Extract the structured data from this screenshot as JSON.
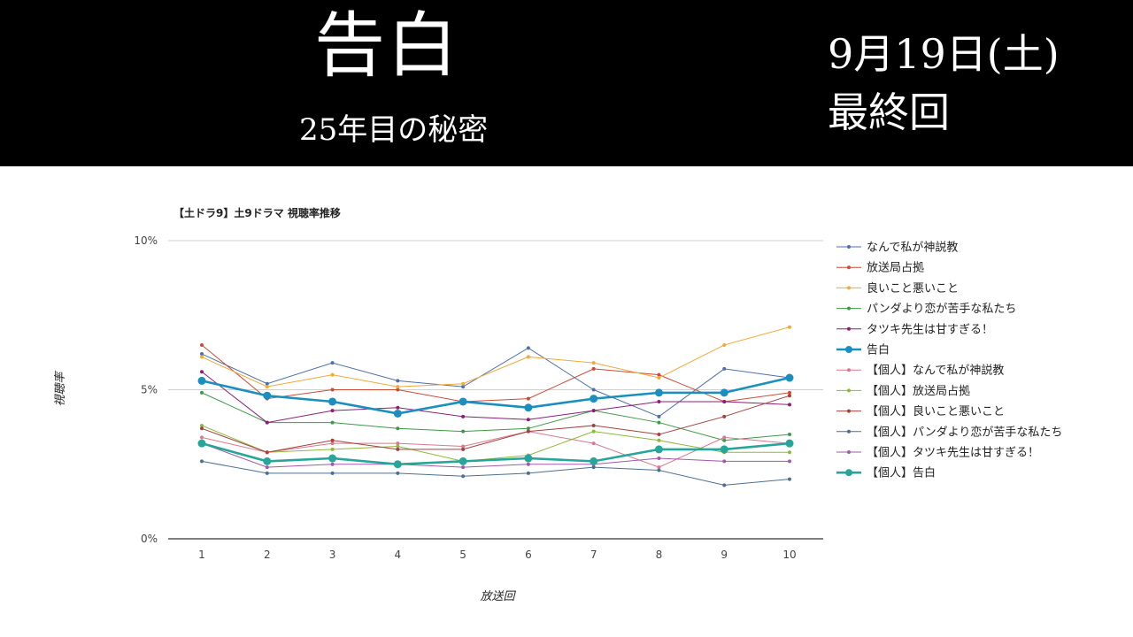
{
  "banner": {
    "title": "告白",
    "subtitle": "25年目の秘密",
    "date": "9月19日(土)",
    "note": "最終回"
  },
  "chart_data": {
    "type": "line",
    "title": "【土ドラ9】土9ドラマ 視聴率推移",
    "xlabel": "放送回",
    "ylabel": "視聴率",
    "x": [
      1,
      2,
      3,
      4,
      5,
      6,
      7,
      8,
      9,
      10
    ],
    "ylim": [
      0,
      10
    ],
    "yticks": [
      "0%",
      "5%",
      "10%"
    ],
    "grid": true,
    "legend_position": "right",
    "series": [
      {
        "name": "なんで私が神説教",
        "color": "#4e6fa8",
        "highlight": false,
        "values": [
          6.2,
          5.2,
          5.9,
          5.3,
          5.1,
          6.4,
          5.0,
          4.1,
          5.7,
          5.4
        ]
      },
      {
        "name": "放送局占拠",
        "color": "#cc4b37",
        "highlight": false,
        "values": [
          6.5,
          4.7,
          5.0,
          5.0,
          4.6,
          4.7,
          5.7,
          5.5,
          4.6,
          4.9
        ]
      },
      {
        "name": "良いこと悪いこと",
        "color": "#f0a93b",
        "highlight": false,
        "values": [
          6.1,
          5.1,
          5.5,
          5.1,
          5.2,
          6.1,
          5.9,
          5.4,
          6.5,
          7.1
        ]
      },
      {
        "name": "パンダより恋が苦手な私たち",
        "color": "#3c9a46",
        "highlight": false,
        "values": [
          4.9,
          3.9,
          3.9,
          3.7,
          3.6,
          3.7,
          4.3,
          3.9,
          3.3,
          3.5
        ]
      },
      {
        "name": "タツキ先生は甘すぎる！",
        "color": "#8b1f78",
        "highlight": false,
        "values": [
          5.6,
          3.9,
          4.3,
          4.4,
          4.1,
          4.0,
          4.3,
          4.6,
          4.6,
          4.5
        ]
      },
      {
        "name": "告白",
        "color": "#1a8fbf",
        "highlight": true,
        "values": [
          5.3,
          4.8,
          4.6,
          4.2,
          4.6,
          4.4,
          4.7,
          4.9,
          4.9,
          5.4
        ]
      },
      {
        "name": "【個人】なんで私が神説教",
        "color": "#d9788f",
        "highlight": false,
        "values": [
          3.4,
          2.9,
          3.2,
          3.2,
          3.1,
          3.6,
          3.2,
          2.4,
          3.4,
          3.2
        ]
      },
      {
        "name": "【個人】放送局占拠",
        "color": "#8db83c",
        "highlight": false,
        "values": [
          3.8,
          2.9,
          3.0,
          3.1,
          2.6,
          2.8,
          3.6,
          3.3,
          2.9,
          2.9
        ]
      },
      {
        "name": "【個人】良いこと悪いこと",
        "color": "#a6403d",
        "highlight": false,
        "values": [
          3.7,
          2.9,
          3.3,
          3.0,
          3.0,
          3.6,
          3.8,
          3.5,
          4.1,
          4.8
        ]
      },
      {
        "name": "【個人】パンダより恋が苦手な私たち",
        "color": "#4d6f8f",
        "highlight": false,
        "values": [
          2.6,
          2.2,
          2.2,
          2.2,
          2.1,
          2.2,
          2.4,
          2.3,
          1.8,
          2.0
        ]
      },
      {
        "name": "【個人】タツキ先生は甘すぎる！",
        "color": "#a05aa8",
        "highlight": false,
        "values": [
          3.2,
          2.4,
          2.5,
          2.5,
          2.4,
          2.5,
          2.5,
          2.7,
          2.6,
          2.6
        ]
      },
      {
        "name": "【個人】告白",
        "color": "#26a69a",
        "highlight": true,
        "values": [
          3.2,
          2.6,
          2.7,
          2.5,
          2.6,
          2.7,
          2.6,
          3.0,
          3.0,
          3.2
        ]
      }
    ]
  }
}
